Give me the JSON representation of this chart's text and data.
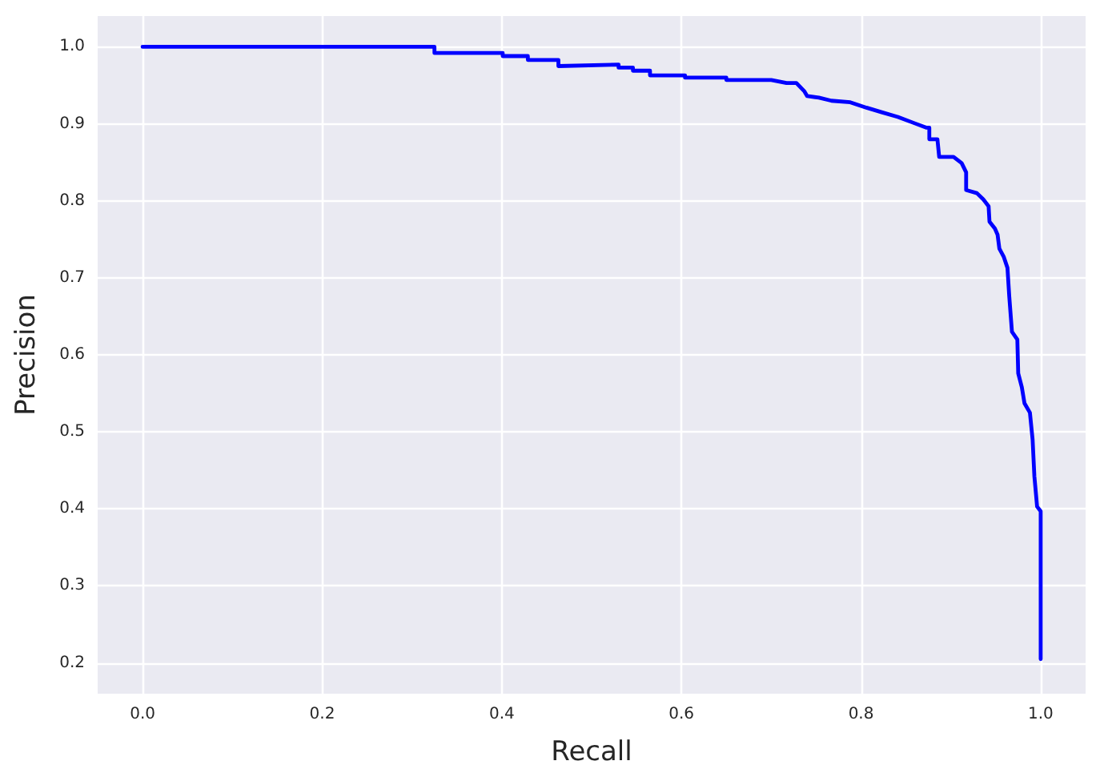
{
  "chart_data": {
    "type": "line",
    "xlabel": "Recall",
    "ylabel": "Precision",
    "x": [
      0,
      0.325,
      0.325,
      0.401,
      0.401,
      0.429,
      0.429,
      0.463,
      0.463,
      0.53,
      0.53,
      0.546,
      0.546,
      0.565,
      0.565,
      0.604,
      0.604,
      0.65,
      0.65,
      0.7,
      0.717,
      0.728,
      0.737,
      0.74,
      0.753,
      0.767,
      0.788,
      0.806,
      0.823,
      0.841,
      0.859,
      0.873,
      0.876,
      0.876,
      0.885,
      0.887,
      0.903,
      0.912,
      0.917,
      0.917,
      0.929,
      0.936,
      0.942,
      0.943,
      0.949,
      0.952,
      0.954,
      0.959,
      0.963,
      0.965,
      0.968,
      0.974,
      0.975,
      0.979,
      0.982,
      0.988,
      0.991,
      0.993,
      0.996,
      1.0,
      1.0
    ],
    "series": [
      {
        "color": "#0000ff",
        "values": [
          1.0,
          1.0,
          0.992,
          0.992,
          0.988,
          0.988,
          0.983,
          0.983,
          0.975,
          0.977,
          0.973,
          0.973,
          0.969,
          0.969,
          0.963,
          0.963,
          0.96,
          0.96,
          0.957,
          0.957,
          0.953,
          0.953,
          0.942,
          0.936,
          0.934,
          0.93,
          0.928,
          0.921,
          0.915,
          0.909,
          0.901,
          0.895,
          0.895,
          0.88,
          0.88,
          0.857,
          0.857,
          0.849,
          0.837,
          0.814,
          0.81,
          0.802,
          0.793,
          0.773,
          0.764,
          0.756,
          0.738,
          0.727,
          0.713,
          0.676,
          0.63,
          0.62,
          0.576,
          0.558,
          0.537,
          0.525,
          0.49,
          0.442,
          0.403,
          0.397,
          0.205
        ]
      }
    ],
    "xlim": [
      -0.05,
      1.05
    ],
    "ylim": [
      0.16,
      1.04
    ],
    "xticks": [
      {
        "value": 0,
        "label": "0.0"
      },
      0.2,
      0.4,
      0.6,
      0.8,
      {
        "value": 1,
        "label": "1.0"
      }
    ],
    "yticks": [
      0.2,
      0.3,
      0.4,
      0.5,
      0.6,
      0.7,
      0.8,
      0.9,
      {
        "value": 1,
        "label": "1.0"
      }
    ],
    "grid": true,
    "marker": "none",
    "line_style": "solid"
  }
}
